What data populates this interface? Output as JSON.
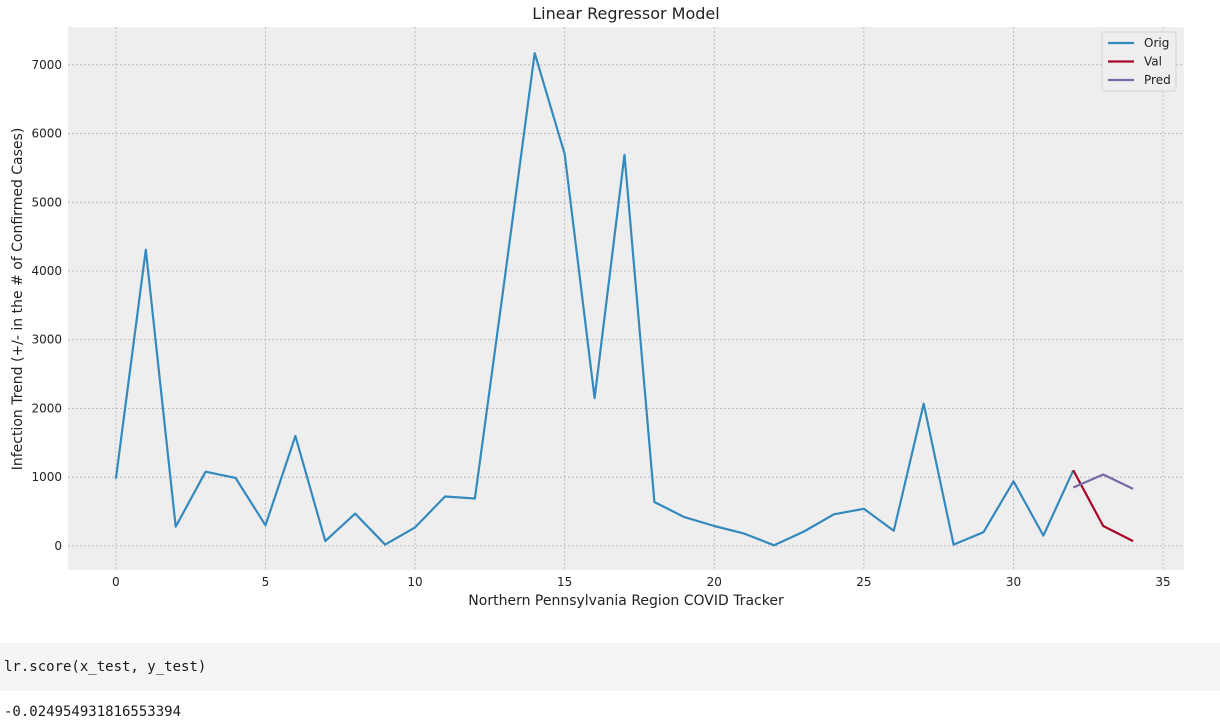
{
  "chart_data": {
    "type": "line",
    "title": "Linear Regressor Model",
    "xlabel": "Northern Pennsylvania Region COVID Tracker",
    "ylabel": "Infection Trend (+/- in the # of Confirmed Cases)",
    "xlim": [
      -1.6,
      35.7
    ],
    "ylim": [
      -350,
      7550
    ],
    "xticks": [
      0,
      5,
      10,
      15,
      20,
      25,
      30,
      35
    ],
    "yticks": [
      0,
      1000,
      2000,
      3000,
      4000,
      5000,
      6000,
      7000
    ],
    "grid": true,
    "legend": "top-right",
    "series": [
      {
        "name": "Orig",
        "color": "#348abd",
        "x": [
          0,
          1,
          2,
          3,
          4,
          5,
          6,
          7,
          8,
          9,
          10,
          11,
          12,
          13,
          14,
          15,
          16,
          17,
          18,
          19,
          20,
          21,
          22,
          23,
          24,
          25,
          26,
          27,
          28,
          29,
          30,
          31,
          32
        ],
        "y": [
          980,
          4310,
          280,
          1080,
          990,
          300,
          1600,
          70,
          470,
          20,
          270,
          720,
          690,
          3900,
          7170,
          5700,
          2150,
          5690,
          640,
          420,
          290,
          180,
          10,
          210,
          460,
          540,
          220,
          2070,
          20,
          200,
          940,
          150,
          1100
        ]
      },
      {
        "name": "Val",
        "color": "#a60628",
        "x": [
          32,
          33,
          34
        ],
        "y": [
          1100,
          290,
          70
        ]
      },
      {
        "name": "Pred",
        "color": "#7a68a6",
        "x": [
          32,
          33,
          34
        ],
        "y": [
          850,
          1040,
          830
        ]
      }
    ]
  },
  "notebook": {
    "code": "lr.score(x_test, y_test)",
    "output": "-0.024954931816553394"
  }
}
